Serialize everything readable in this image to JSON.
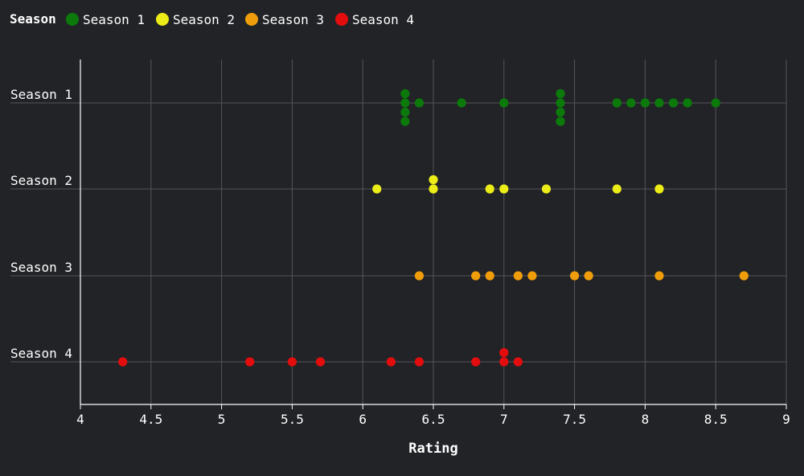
{
  "chart_data": {
    "type": "scatter",
    "title": "",
    "xlabel": "Rating",
    "ylabel": "",
    "xlim": [
      4,
      9
    ],
    "xticks": [
      "4",
      "4.5",
      "5",
      "5.5",
      "6",
      "6.5",
      "7",
      "7.5",
      "8",
      "8.5",
      "9"
    ],
    "xtick_values": [
      4,
      4.5,
      5,
      5.5,
      6,
      6.5,
      7,
      7.5,
      8,
      8.5,
      9
    ],
    "categories": [
      "Season 1",
      "Season 2",
      "Season 3",
      "Season 4"
    ],
    "grid": true,
    "legend": {
      "title": "Season",
      "placement": "top-left"
    },
    "series": [
      {
        "name": "Season 1",
        "color": "#0b7a0b",
        "category": "Season 1",
        "values": [
          6.3,
          6.3,
          6.3,
          6.3,
          6.4,
          6.7,
          7.0,
          7.4,
          7.4,
          7.4,
          7.4,
          7.8,
          7.9,
          8.0,
          8.1,
          8.2,
          8.3,
          8.5
        ]
      },
      {
        "name": "Season 2",
        "color": "#ecec17",
        "category": "Season 2",
        "values": [
          6.1,
          6.5,
          6.5,
          6.9,
          7.0,
          7.3,
          7.8,
          8.1
        ]
      },
      {
        "name": "Season 3",
        "color": "#f09d0b",
        "category": "Season 3",
        "values": [
          6.4,
          6.8,
          6.9,
          7.1,
          7.2,
          7.5,
          7.6,
          8.1,
          8.7
        ]
      },
      {
        "name": "Season 4",
        "color": "#e30d0d",
        "category": "Season 4",
        "values": [
          4.3,
          5.2,
          5.5,
          5.7,
          6.2,
          6.4,
          6.8,
          7.0,
          7.0,
          7.1
        ]
      }
    ]
  }
}
